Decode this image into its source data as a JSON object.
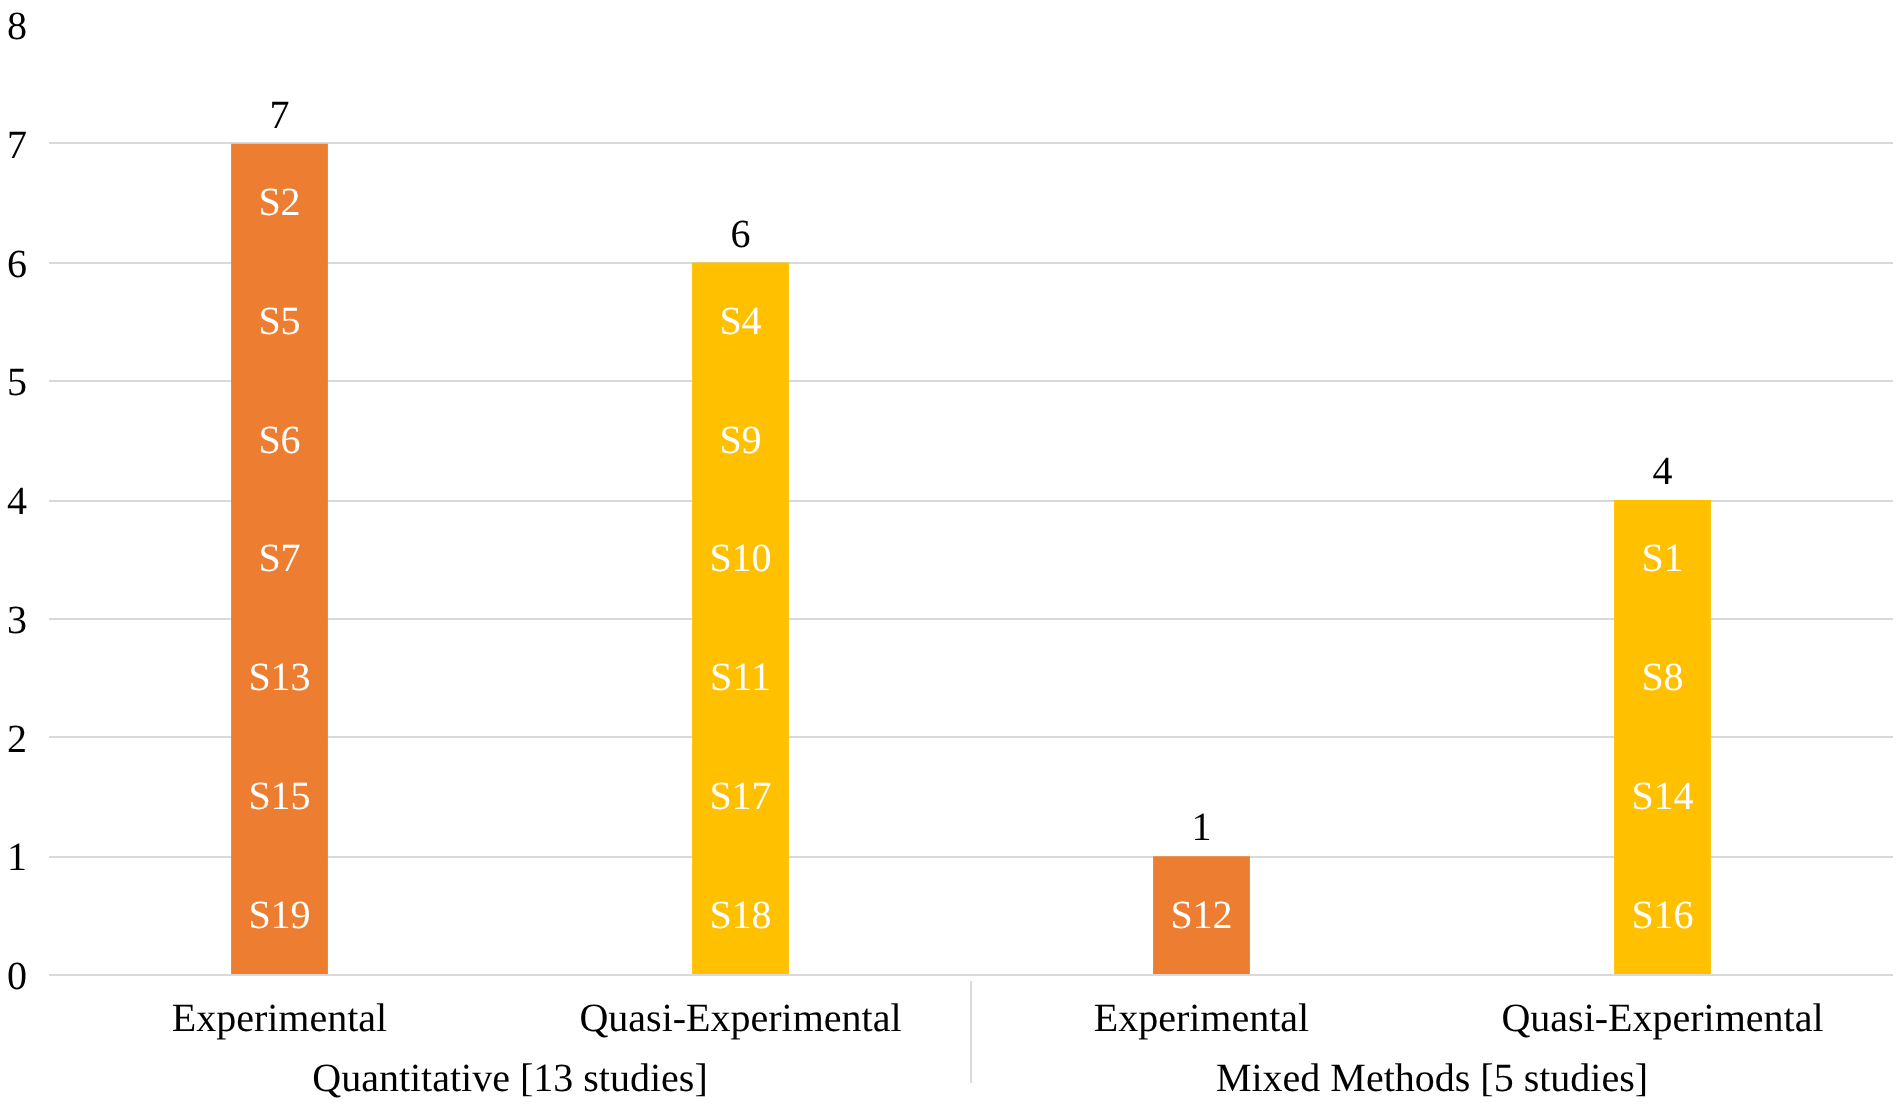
{
  "chart_data": {
    "type": "bar",
    "categories": [
      "Experimental",
      "Quasi-Experimental",
      "Experimental",
      "Quasi-Experimental"
    ],
    "values": [
      7,
      6,
      1,
      4
    ],
    "colors": [
      "#ed7d31",
      "#ffc000",
      "#ed7d31",
      "#ffc000"
    ],
    "ylim": [
      0,
      8
    ],
    "yticks": [
      0,
      1,
      2,
      3,
      4,
      5,
      6,
      7,
      8
    ],
    "grid": "y",
    "data_labels": true,
    "annotations": [
      "Quantitative [13 studies]",
      "Mixed Methods [5 studies]",
      "S2",
      "S5",
      "S6",
      "S7",
      "S13",
      "S15",
      "S19",
      "S4",
      "S9",
      "S10",
      "S11",
      "S17",
      "S18",
      "S12",
      "S1",
      "S8",
      "S14",
      "S16"
    ]
  }
}
